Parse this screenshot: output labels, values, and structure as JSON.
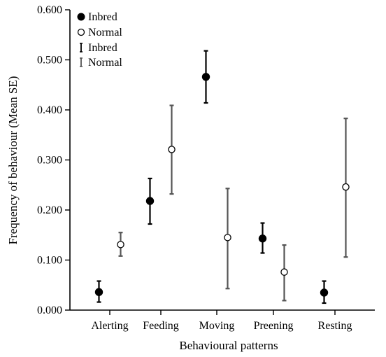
{
  "chart_data": {
    "type": "scatter",
    "title": "",
    "xlabel": "Behavioural patterns",
    "ylabel": "Frequency of behaviour (Mean  SE)",
    "categories": [
      "Alerting",
      "Feeding",
      "Moving",
      "Preening",
      "Resting"
    ],
    "ylim": [
      0,
      0.6
    ],
    "yticks": [
      "0.000",
      "0.100",
      "0.200",
      "0.300",
      "0.400",
      "0.500",
      "0.600"
    ],
    "series": [
      {
        "name": "Inbred",
        "marker": "filled-circle",
        "values": [
          0.036,
          0.218,
          0.466,
          0.143,
          0.035
        ],
        "err_low": [
          0.016,
          0.172,
          0.414,
          0.114,
          0.014
        ],
        "err_high": [
          0.058,
          0.263,
          0.518,
          0.174,
          0.058
        ],
        "errorbar_color": "#000000"
      },
      {
        "name": "Normal",
        "marker": "open-circle",
        "values": [
          0.131,
          0.321,
          0.145,
          0.076,
          0.246
        ],
        "err_low": [
          0.108,
          0.232,
          0.043,
          0.019,
          0.106
        ],
        "err_high": [
          0.155,
          0.409,
          0.243,
          0.13,
          0.383
        ],
        "errorbar_color": "#555555"
      }
    ],
    "legend": {
      "placement": "top-left",
      "entries": [
        {
          "label": "Inbred",
          "symbol": "filled-circle"
        },
        {
          "label": "Normal",
          "symbol": "open-circle"
        },
        {
          "label": "Inbred",
          "symbol": "errorbar-black"
        },
        {
          "label": "Normal",
          "symbol": "errorbar-gray"
        }
      ]
    },
    "grid": false
  }
}
